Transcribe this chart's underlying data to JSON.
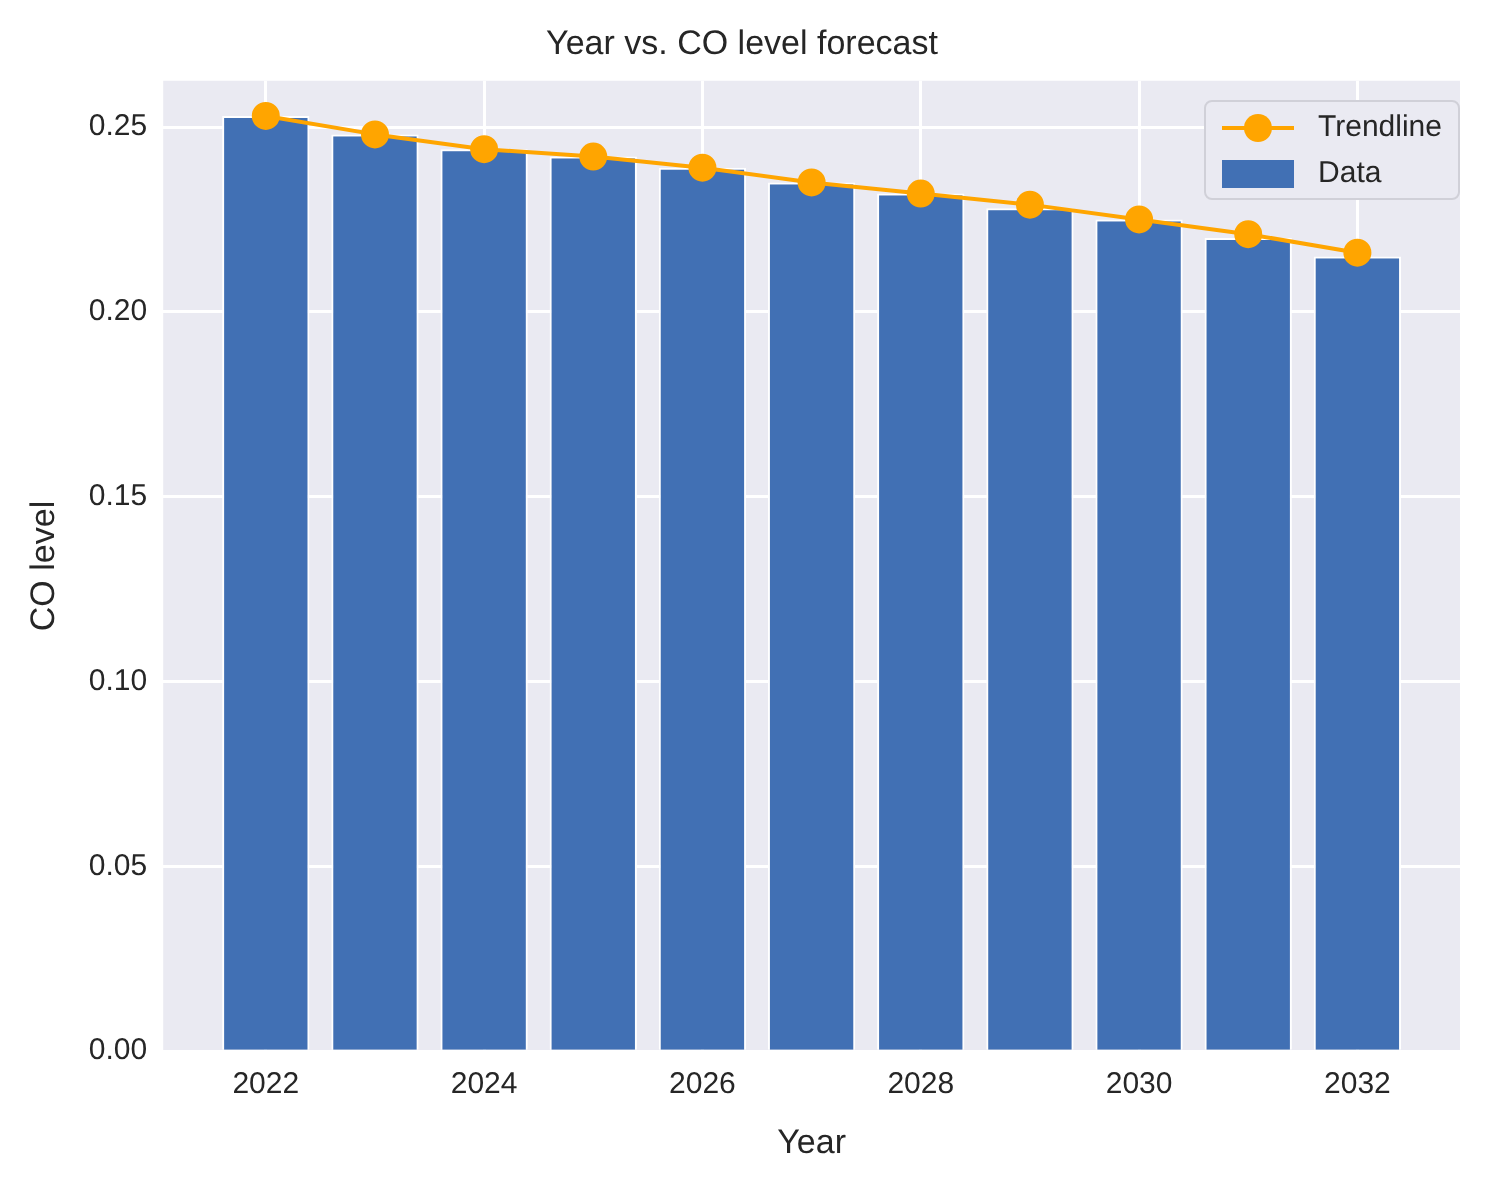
{
  "chart_data": {
    "type": "bar",
    "title": "Year vs. CO level forecast",
    "xlabel": "Year",
    "ylabel": "CO level",
    "x": [
      2022,
      2023,
      2024,
      2025,
      2026,
      2027,
      2028,
      2029,
      2030,
      2031,
      2032
    ],
    "series": [
      {
        "name": "Trendline",
        "type": "line",
        "color": "#ffa500",
        "marker": "circle",
        "values": [
          0.253,
          0.248,
          0.244,
          0.242,
          0.239,
          0.235,
          0.232,
          0.229,
          0.225,
          0.221,
          0.216
        ]
      },
      {
        "name": "Data",
        "color": "#4170b4",
        "values": [
          0.253,
          0.248,
          0.244,
          0.242,
          0.239,
          0.235,
          0.232,
          0.228,
          0.225,
          0.22,
          0.215
        ]
      }
    ],
    "xlim": [
      2021.06,
      2032.94
    ],
    "xticks": [
      2022,
      2024,
      2026,
      2028,
      2030,
      2032
    ],
    "ylim": [
      0,
      0.2625
    ],
    "yticks": [
      {
        "value": 0,
        "label": "0.00"
      },
      {
        "value": 0.05,
        "label": "0.05"
      },
      {
        "value": 0.1,
        "label": "0.10"
      },
      {
        "value": 0.15,
        "label": "0.15"
      },
      {
        "value": 0.2,
        "label": "0.20"
      },
      {
        "value": 0.25,
        "label": "0.25"
      }
    ],
    "grid": true,
    "legend": "top right"
  }
}
